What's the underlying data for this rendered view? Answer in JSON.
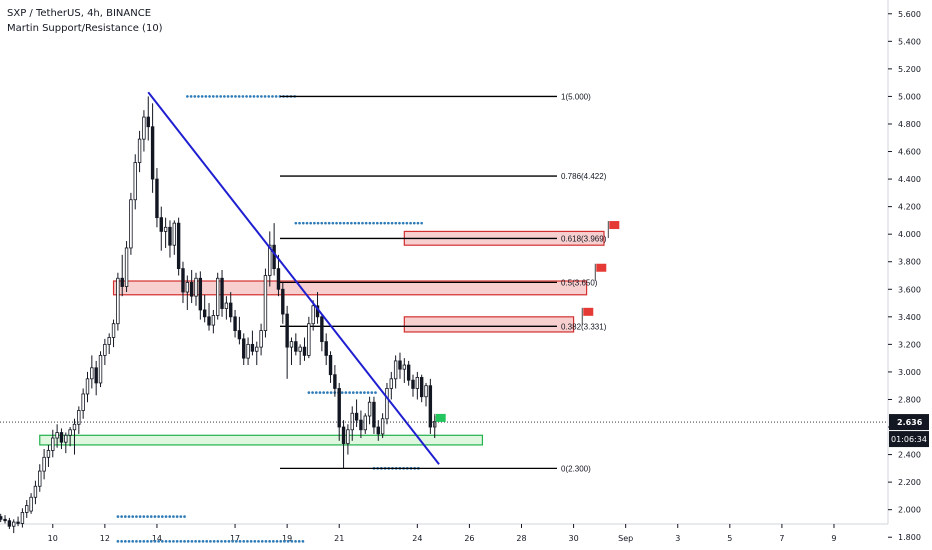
{
  "header": {
    "symbol_line": "SXP / TetherUS, 4h, BINANCE",
    "indicator_line": "Martin Support/Resistance (10)"
  },
  "colors": {
    "candle_up": "#131722",
    "candle_down": "#131722",
    "trendline": "#1f1fd1",
    "sr_dots": "#2e7bb8",
    "zone_red_fill": "#f7c7c7",
    "zone_red_border": "#d32f2f",
    "zone_green_fill": "#d9f5d9",
    "zone_green_border": "#22b14c",
    "flag_red": "#e53935",
    "flag_green": "#22c55e",
    "price_tag": "#131722"
  },
  "chart_data": {
    "type": "candlestick",
    "title": "SXP / TetherUS, 4h, BINANCE",
    "indicator": "Martin Support/Resistance (10)",
    "ylim": [
      1.7,
      5.7
    ],
    "y_ticks": [
      "5.600",
      "5.400",
      "5.200",
      "5.000",
      "4.800",
      "4.600",
      "4.400",
      "4.200",
      "4.000",
      "3.800",
      "3.600",
      "3.400",
      "3.200",
      "3.000",
      "2.800",
      "2.600",
      "2.400",
      "2.200",
      "2.000",
      "1.800"
    ],
    "y_tick_values": [
      5.6,
      5.4,
      5.2,
      5.0,
      4.8,
      4.6,
      4.4,
      4.2,
      4.0,
      3.8,
      3.6,
      3.4,
      3.2,
      3.0,
      2.8,
      2.6,
      2.4,
      2.2,
      2.0,
      1.8
    ],
    "x_ticks": [
      {
        "label": "10",
        "idx": 12
      },
      {
        "label": "12",
        "idx": 24
      },
      {
        "label": "14",
        "idx": 36
      },
      {
        "label": "17",
        "idx": 54
      },
      {
        "label": "19",
        "idx": 66
      },
      {
        "label": "21",
        "idx": 78
      },
      {
        "label": "24",
        "idx": 96
      },
      {
        "label": "26",
        "idx": 108
      },
      {
        "label": "28",
        "idx": 120
      },
      {
        "label": "30",
        "idx": 132
      },
      {
        "label": "Sep",
        "idx": 144
      },
      {
        "label": "3",
        "idx": 156
      },
      {
        "label": "5",
        "idx": 168
      },
      {
        "label": "7",
        "idx": 180
      },
      {
        "label": "9",
        "idx": 192
      }
    ],
    "candles": [
      [
        1.95,
        1.97,
        1.91,
        1.93
      ],
      [
        1.93,
        1.96,
        1.9,
        1.92
      ],
      [
        1.92,
        1.94,
        1.86,
        1.88
      ],
      [
        1.88,
        1.93,
        1.83,
        1.91
      ],
      [
        1.91,
        1.95,
        1.88,
        1.9
      ],
      [
        1.9,
        2.01,
        1.87,
        1.98
      ],
      [
        1.98,
        2.07,
        1.94,
        2.03
      ],
      [
        1.99,
        2.12,
        1.97,
        2.09
      ],
      [
        2.09,
        2.21,
        2.04,
        2.17
      ],
      [
        2.17,
        2.33,
        2.13,
        2.28
      ],
      [
        2.28,
        2.44,
        2.22,
        2.38
      ],
      [
        2.38,
        2.47,
        2.31,
        2.43
      ],
      [
        2.43,
        2.58,
        2.38,
        2.52
      ],
      [
        2.52,
        2.62,
        2.45,
        2.56
      ],
      [
        2.56,
        2.59,
        2.44,
        2.49
      ],
      [
        2.49,
        2.56,
        2.41,
        2.54
      ],
      [
        2.54,
        2.6,
        2.46,
        2.58
      ],
      [
        2.58,
        2.66,
        2.4,
        2.62
      ],
      [
        2.62,
        2.75,
        2.55,
        2.72
      ],
      [
        2.72,
        2.88,
        2.66,
        2.84
      ],
      [
        2.84,
        3.0,
        2.78,
        2.95
      ],
      [
        2.95,
        3.12,
        2.88,
        3.03
      ],
      [
        3.03,
        3.08,
        2.83,
        2.92
      ],
      [
        2.92,
        3.15,
        2.89,
        3.12
      ],
      [
        3.12,
        3.24,
        3.05,
        3.2
      ],
      [
        3.2,
        3.28,
        3.13,
        3.25
      ],
      [
        3.25,
        3.38,
        3.18,
        3.35
      ],
      [
        3.35,
        3.72,
        3.3,
        3.68
      ],
      [
        3.68,
        3.85,
        3.55,
        3.62
      ],
      [
        3.62,
        3.95,
        3.58,
        3.9
      ],
      [
        3.9,
        4.3,
        3.85,
        4.25
      ],
      [
        4.25,
        4.58,
        4.18,
        4.52
      ],
      [
        4.52,
        4.75,
        4.45,
        4.69
      ],
      [
        4.69,
        4.9,
        4.6,
        4.85
      ],
      [
        4.85,
        5.0,
        4.68,
        4.78
      ],
      [
        4.78,
        4.95,
        4.3,
        4.4
      ],
      [
        4.4,
        4.48,
        4.05,
        4.12
      ],
      [
        4.12,
        4.2,
        3.88,
        4.02
      ],
      [
        4.02,
        4.12,
        3.9,
        4.05
      ],
      [
        4.05,
        4.1,
        3.83,
        3.92
      ],
      [
        3.92,
        4.1,
        3.85,
        4.08
      ],
      [
        4.08,
        4.12,
        3.7,
        3.75
      ],
      [
        3.75,
        3.8,
        3.5,
        3.58
      ],
      [
        3.58,
        3.7,
        3.45,
        3.65
      ],
      [
        3.65,
        3.74,
        3.5,
        3.55
      ],
      [
        3.55,
        3.72,
        3.48,
        3.68
      ],
      [
        3.68,
        3.73,
        3.38,
        3.45
      ],
      [
        3.45,
        3.56,
        3.36,
        3.4
      ],
      [
        3.4,
        3.5,
        3.3,
        3.34
      ],
      [
        3.34,
        3.45,
        3.28,
        3.41
      ],
      [
        3.41,
        3.72,
        3.38,
        3.68
      ],
      [
        3.68,
        3.74,
        3.4,
        3.46
      ],
      [
        3.46,
        3.55,
        3.38,
        3.5
      ],
      [
        3.5,
        3.58,
        3.36,
        3.4
      ],
      [
        3.4,
        3.45,
        3.25,
        3.3
      ],
      [
        3.3,
        3.4,
        3.2,
        3.24
      ],
      [
        3.24,
        3.28,
        3.05,
        3.1
      ],
      [
        3.1,
        3.25,
        3.05,
        3.2
      ],
      [
        3.2,
        3.3,
        3.12,
        3.15
      ],
      [
        3.15,
        3.22,
        3.05,
        3.18
      ],
      [
        3.18,
        3.35,
        3.12,
        3.3
      ],
      [
        3.3,
        3.75,
        3.25,
        3.7
      ],
      [
        3.7,
        4.02,
        3.62,
        3.92
      ],
      [
        3.92,
        4.08,
        3.7,
        3.75
      ],
      [
        3.75,
        3.85,
        3.55,
        3.6
      ],
      [
        3.6,
        3.65,
        3.35,
        3.42
      ],
      [
        3.42,
        3.48,
        2.95,
        3.18
      ],
      [
        3.18,
        3.25,
        3.05,
        3.22
      ],
      [
        3.22,
        3.28,
        3.12,
        3.15
      ],
      [
        3.15,
        3.2,
        3.05,
        3.18
      ],
      [
        3.18,
        3.25,
        3.08,
        3.12
      ],
      [
        3.12,
        3.4,
        3.1,
        3.35
      ],
      [
        3.35,
        3.52,
        3.3,
        3.48
      ],
      [
        3.48,
        3.58,
        3.35,
        3.4
      ],
      [
        3.4,
        3.42,
        3.15,
        3.22
      ],
      [
        3.22,
        3.28,
        3.05,
        3.12
      ],
      [
        3.12,
        3.15,
        2.92,
        2.98
      ],
      [
        2.98,
        3.05,
        2.82,
        2.88
      ],
      [
        2.88,
        2.92,
        2.5,
        2.6
      ],
      [
        2.6,
        2.65,
        2.3,
        2.48
      ],
      [
        2.48,
        2.62,
        2.4,
        2.58
      ],
      [
        2.58,
        2.75,
        2.5,
        2.7
      ],
      [
        2.7,
        2.8,
        2.6,
        2.65
      ],
      [
        2.65,
        2.72,
        2.52,
        2.58
      ],
      [
        2.58,
        2.7,
        2.55,
        2.68
      ],
      [
        2.68,
        2.82,
        2.62,
        2.78
      ],
      [
        2.78,
        2.82,
        2.55,
        2.6
      ],
      [
        2.6,
        2.65,
        2.5,
        2.55
      ],
      [
        2.55,
        2.7,
        2.52,
        2.66
      ],
      [
        2.66,
        2.92,
        2.62,
        2.88
      ],
      [
        2.88,
        3.0,
        2.8,
        2.95
      ],
      [
        2.95,
        3.12,
        2.88,
        3.08
      ],
      [
        3.08,
        3.14,
        2.95,
        3.02
      ],
      [
        3.02,
        3.1,
        2.92,
        3.05
      ],
      [
        3.05,
        3.08,
        2.9,
        2.94
      ],
      [
        2.94,
        2.98,
        2.82,
        2.88
      ],
      [
        2.88,
        3.0,
        2.8,
        2.96
      ],
      [
        2.96,
        2.98,
        2.78,
        2.82
      ],
      [
        2.82,
        2.92,
        2.75,
        2.9
      ],
      [
        2.9,
        2.95,
        2.55,
        2.6
      ],
      [
        2.6,
        2.68,
        2.52,
        2.64
      ]
    ],
    "trendline": {
      "from": {
        "idx": 34,
        "price": 5.03
      },
      "to": {
        "idx": 101,
        "price": 2.33
      }
    },
    "fib_levels": [
      {
        "label": "1(5.000)",
        "value": 5.0
      },
      {
        "label": "0.786(4.422)",
        "value": 4.422
      },
      {
        "label": "0.618(3.969)",
        "value": 3.969
      },
      {
        "label": "0.5(3.650)",
        "value": 3.65
      },
      {
        "label": "0.382(3.331)",
        "value": 3.331
      },
      {
        "label": "0(2.300)",
        "value": 2.3
      }
    ],
    "dotted_sr_levels": [
      {
        "value": 5.0,
        "from_idx": 43,
        "to_idx": 68
      },
      {
        "value": 4.08,
        "from_idx": 68,
        "to_idx": 97
      },
      {
        "value": 2.85,
        "from_idx": 71,
        "to_idx": 87
      },
      {
        "value": 2.3,
        "from_idx": 86,
        "to_idx": 97
      },
      {
        "value": 1.95,
        "from_idx": 27,
        "to_idx": 43
      },
      {
        "value": 1.77,
        "from_idx": 27,
        "to_idx": 70
      }
    ],
    "zones": [
      {
        "color": "red",
        "top": 3.66,
        "bottom": 3.56,
        "from_idx": 26,
        "to_idx": 135
      },
      {
        "color": "red",
        "top": 4.02,
        "bottom": 3.92,
        "from_idx": 93,
        "to_idx": 139
      },
      {
        "color": "red",
        "top": 3.4,
        "bottom": 3.29,
        "from_idx": 93,
        "to_idx": 132
      },
      {
        "color": "green",
        "top": 2.54,
        "bottom": 2.47,
        "from_idx": 9,
        "to_idx": 111
      }
    ],
    "flags": [
      {
        "color": "red",
        "idx": 140,
        "price": 4.03
      },
      {
        "color": "red",
        "idx": 137,
        "price": 3.72
      },
      {
        "color": "red",
        "idx": 134,
        "price": 3.4
      },
      {
        "color": "green",
        "idx": 100,
        "price": 2.63
      }
    ],
    "current_price": "2.636",
    "current_price_value": 2.636,
    "countdown": "01:06:34"
  }
}
